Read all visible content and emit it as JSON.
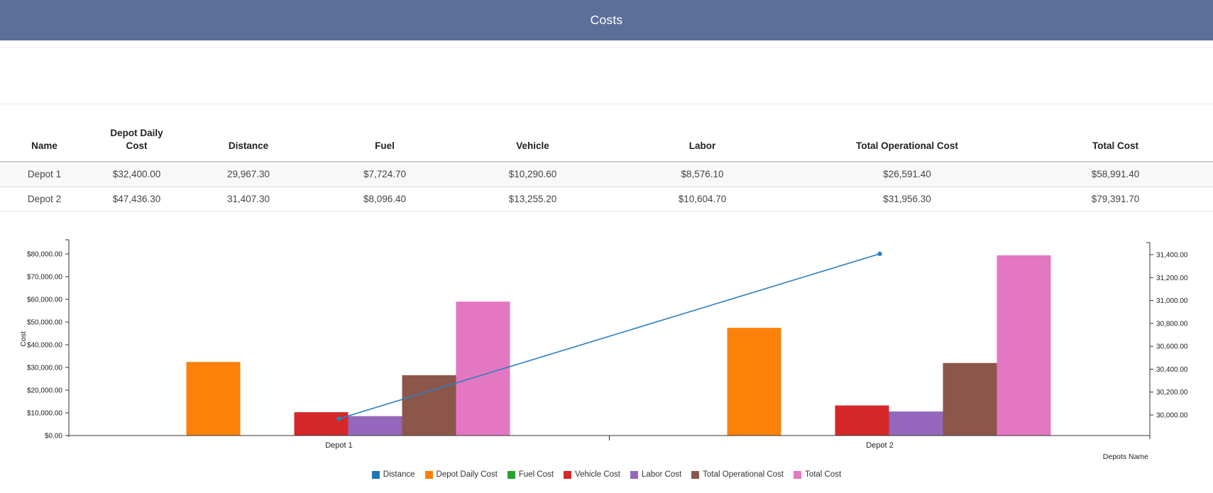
{
  "header": {
    "title": "Costs",
    "bg_color": "#5c6f9b",
    "text_color": "#ffffff"
  },
  "table": {
    "columns": [
      "Name",
      "Depot Daily Cost",
      "Distance",
      "Fuel",
      "Vehicle",
      "Labor",
      "Total Operational Cost",
      "Total Cost"
    ],
    "rows": [
      [
        "Depot 1",
        "$32,400.00",
        "29,967.30",
        "$7,724.70",
        "$10,290.60",
        "$8,576.10",
        "$26,591.40",
        "$58,991.40"
      ],
      [
        "Depot 2",
        "$47,436.30",
        "31,407.30",
        "$8,096.40",
        "$13,255.20",
        "$10,604.70",
        "$31,956.30",
        "$79,391.70"
      ]
    ],
    "alt_row_bg": "#f8f8f8"
  },
  "chart_data": {
    "type": "bar",
    "categories": [
      "Depot 1",
      "Depot 2"
    ],
    "xlabel": "Depots Name",
    "ylabel_left": "Cost",
    "grid": false,
    "legend_position": "bottom",
    "left_axis": {
      "min": 0,
      "max": 80000,
      "tick_step": 10000,
      "tick_labels": [
        "$0.00",
        "$10,000.00",
        "$20,000.00",
        "$30,000.00",
        "$40,000.00",
        "$50,000.00",
        "$60,000.00",
        "$70,000.00",
        "$80,000.00"
      ]
    },
    "right_axis": {
      "tick_min": 30000,
      "tick_max": 31400,
      "tick_step": 200,
      "tick_labels": [
        "30,000.00",
        "30,200.00",
        "30,400.00",
        "30,600.00",
        "30,800.00",
        "31,000.00",
        "31,200.00",
        "31,400.00"
      ]
    },
    "series": [
      {
        "name": "Distance",
        "type": "line",
        "axis": "right",
        "color": "#2e7fc1",
        "values": [
          29967.3,
          31407.3
        ],
        "bar_visible": false
      },
      {
        "name": "Depot Daily Cost",
        "type": "bar",
        "axis": "left",
        "color": "#fb810b",
        "values": [
          32400.0,
          47436.3
        ],
        "bar_visible": true
      },
      {
        "name": "Fuel Cost",
        "type": "bar",
        "axis": "left",
        "color": "#2ca02c",
        "values": [
          7724.7,
          8096.4
        ],
        "bar_visible": false
      },
      {
        "name": "Vehicle Cost",
        "type": "bar",
        "axis": "left",
        "color": "#d62728",
        "values": [
          10290.6,
          13255.2
        ],
        "bar_visible": true
      },
      {
        "name": "Labor Cost",
        "type": "bar",
        "axis": "left",
        "color": "#9467bd",
        "values": [
          8576.1,
          10604.7
        ],
        "bar_visible": true
      },
      {
        "name": "Total Operational Cost",
        "type": "bar",
        "axis": "left",
        "color": "#8c564b",
        "values": [
          26591.4,
          31956.3
        ],
        "bar_visible": true
      },
      {
        "name": "Total Cost",
        "type": "bar",
        "axis": "left",
        "color": "#e377c2",
        "values": [
          58991.4,
          79391.7
        ],
        "bar_visible": true
      }
    ]
  }
}
